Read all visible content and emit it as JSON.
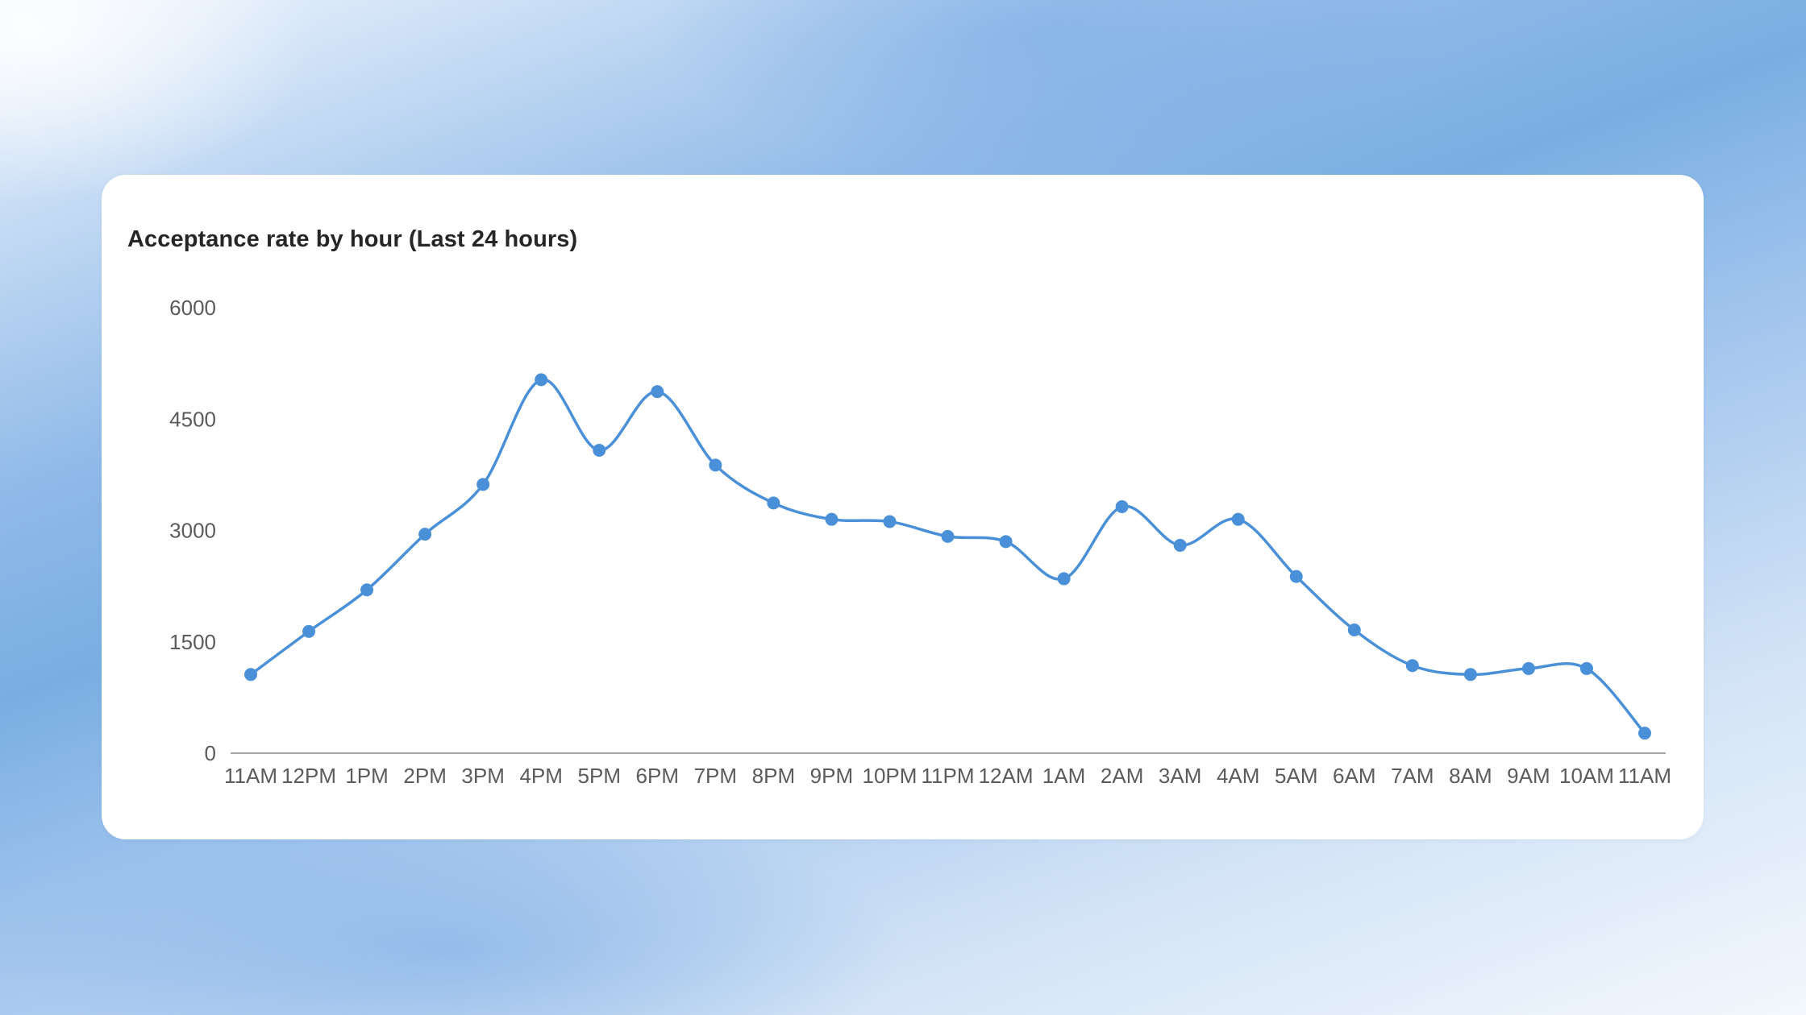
{
  "chart_data": {
    "type": "line",
    "title": "Acceptance rate by hour (Last 24 hours)",
    "xlabel": "",
    "ylabel": "",
    "categories": [
      "11AM",
      "12PM",
      "1PM",
      "2PM",
      "3PM",
      "4PM",
      "5PM",
      "6PM",
      "7PM",
      "8PM",
      "9PM",
      "10PM",
      "11PM",
      "12AM",
      "1AM",
      "2AM",
      "3AM",
      "4AM",
      "5AM",
      "6AM",
      "7AM",
      "8AM",
      "9AM",
      "10AM",
      "11AM"
    ],
    "series": [
      {
        "values": [
          1060,
          1640,
          2200,
          2950,
          3620,
          5030,
          4080,
          4870,
          3880,
          3370,
          3150,
          3120,
          2920,
          2850,
          2350,
          3320,
          2800,
          3150,
          2380,
          1660,
          1180,
          1060,
          1140,
          1140,
          270
        ]
      }
    ],
    "ylim": [
      0,
      6000
    ],
    "yticks": [
      0,
      1500,
      3000,
      4500,
      6000
    ],
    "grid": false,
    "line_color": "#4a90d9",
    "axis_color": "#8a8a8a"
  }
}
